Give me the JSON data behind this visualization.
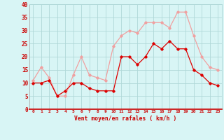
{
  "x": [
    0,
    1,
    2,
    3,
    4,
    5,
    6,
    7,
    8,
    9,
    10,
    11,
    12,
    13,
    14,
    15,
    16,
    17,
    18,
    19,
    20,
    21,
    22,
    23
  ],
  "avg_wind": [
    10,
    10,
    11,
    5,
    7,
    10,
    10,
    8,
    7,
    7,
    7,
    20,
    20,
    17,
    20,
    25,
    23,
    26,
    23,
    23,
    15,
    13,
    10,
    9
  ],
  "gust_wind": [
    11,
    16,
    12,
    5,
    5,
    13,
    20,
    13,
    12,
    11,
    24,
    28,
    30,
    29,
    33,
    33,
    33,
    31,
    37,
    37,
    28,
    20,
    16,
    15
  ],
  "avg_color": "#dd0000",
  "gust_color": "#f0a0a0",
  "bg_color": "#d8f5f5",
  "grid_color": "#b0d8d8",
  "xlabel": "Vent moyen/en rafales ( km/h )",
  "xlabel_color": "#cc0000",
  "tick_color": "#cc0000",
  "ylim": [
    0,
    40
  ],
  "yticks": [
    0,
    5,
    10,
    15,
    20,
    25,
    30,
    35,
    40
  ],
  "marker": "D",
  "markersize": 1.8,
  "linewidth": 0.9
}
